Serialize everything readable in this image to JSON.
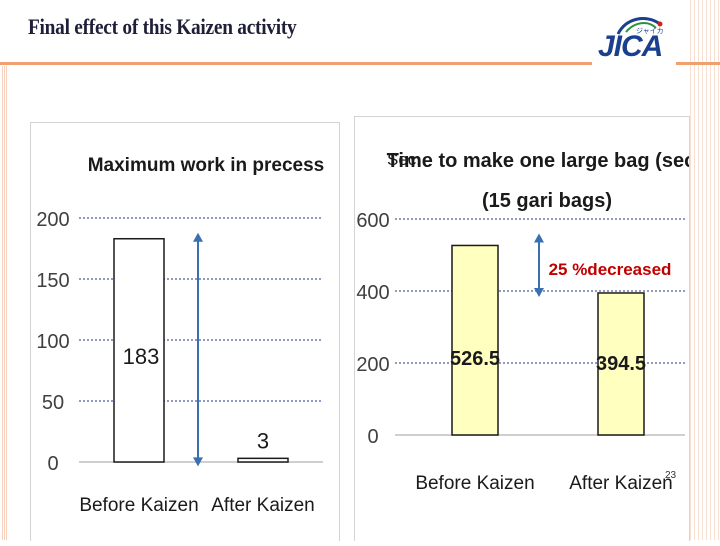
{
  "slide": {
    "title": "Final effect of this Kaizen activity",
    "logo": {
      "text": "JICA",
      "kana": "ジャイカ"
    },
    "corner_mark": "23"
  },
  "colors": {
    "accent_line": "#f0a070",
    "logo_blue": "#1a3f8f",
    "left_bar_fill": "#ffffff",
    "right_bar_fill": "#ffffc0",
    "arrow": "#3a6fb0",
    "annotation_red": "#c00000",
    "gridline": "#4a5a9a"
  },
  "chart_data": [
    {
      "type": "bar",
      "title": "Maximum work in precess",
      "categories": [
        "Before Kaizen",
        "After Kaizen"
      ],
      "values": [
        183,
        3
      ],
      "data_labels": [
        "183",
        "3"
      ],
      "ylim": [
        0,
        200
      ],
      "yticks": [
        0,
        50,
        100,
        150,
        200
      ],
      "grid": true,
      "legend": "none",
      "annotation": {
        "type": "double-arrow",
        "from": 183,
        "to": 3
      }
    },
    {
      "type": "bar",
      "title": "Time to make one large bag (sec.)",
      "subtitle": "(15 gari bags)",
      "unit_label": "Sec.",
      "categories": [
        "Before Kaizen",
        "After Kaizen"
      ],
      "values": [
        526.5,
        394.5
      ],
      "data_labels": [
        "526.5",
        "394.5"
      ],
      "ylim": [
        0,
        600
      ],
      "yticks": [
        0,
        200,
        400,
        600
      ],
      "grid": true,
      "legend": "none",
      "annotation": {
        "type": "double-arrow",
        "from": 526.5,
        "to": 394.5,
        "text": "25 %decreased"
      }
    }
  ]
}
